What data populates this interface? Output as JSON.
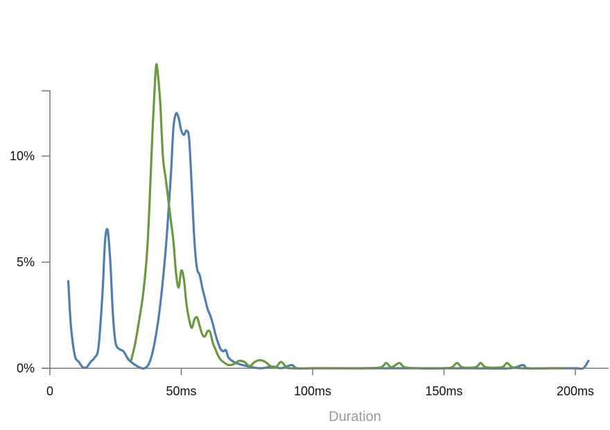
{
  "chart_data": {
    "type": "line",
    "title": "",
    "xlabel": "Duration",
    "ylabel": "",
    "xlim": [
      0,
      205
    ],
    "ylim": [
      0,
      13
    ],
    "x_ticks": [
      {
        "value": 0,
        "label": "0"
      },
      {
        "value": 50,
        "label": "50ms"
      },
      {
        "value": 100,
        "label": "100ms"
      },
      {
        "value": 150,
        "label": "150ms"
      },
      {
        "value": 200,
        "label": "200ms"
      }
    ],
    "y_ticks": [
      {
        "value": 0,
        "label": "0%"
      },
      {
        "value": 5,
        "label": "5%"
      },
      {
        "value": 10,
        "label": "10%"
      }
    ],
    "grid": false,
    "legend": "none",
    "series": [
      {
        "color": "#4f7db5",
        "points": [
          [
            7,
            4.1
          ],
          [
            8,
            2.0
          ],
          [
            9.5,
            0.6
          ],
          [
            11,
            0.3
          ],
          [
            12.5,
            0.05
          ],
          [
            14,
            0.05
          ],
          [
            15.5,
            0.3
          ],
          [
            17,
            0.5
          ],
          [
            18.5,
            1.0
          ],
          [
            20,
            3.5
          ],
          [
            21,
            6.0
          ],
          [
            22,
            6.5
          ],
          [
            23,
            5.0
          ],
          [
            24,
            2.5
          ],
          [
            25,
            1.2
          ],
          [
            26.5,
            0.9
          ],
          [
            28,
            0.8
          ],
          [
            30,
            0.4
          ],
          [
            32,
            0.2
          ],
          [
            34,
            0.05
          ],
          [
            36,
            0.0
          ],
          [
            38,
            0.3
          ],
          [
            40,
            1.3
          ],
          [
            42,
            3.0
          ],
          [
            44,
            5.5
          ],
          [
            46,
            9.0
          ],
          [
            47,
            11.3
          ],
          [
            48,
            12.0
          ],
          [
            49,
            11.8
          ],
          [
            50,
            11.2
          ],
          [
            51,
            11.0
          ],
          [
            52,
            11.2
          ],
          [
            53,
            10.8
          ],
          [
            54,
            8.5
          ],
          [
            55,
            6.0
          ],
          [
            56,
            4.7
          ],
          [
            57,
            4.4
          ],
          [
            58,
            3.8
          ],
          [
            59,
            3.3
          ],
          [
            60,
            2.8
          ],
          [
            61,
            2.5
          ],
          [
            62,
            2.1
          ],
          [
            63,
            1.6
          ],
          [
            64,
            1.2
          ],
          [
            65,
            0.9
          ],
          [
            66,
            0.8
          ],
          [
            67,
            0.85
          ],
          [
            68,
            0.5
          ],
          [
            70,
            0.3
          ],
          [
            72,
            0.2
          ],
          [
            75,
            0.1
          ],
          [
            80,
            0.0
          ],
          [
            85,
            0.08
          ],
          [
            88,
            0.0
          ],
          [
            92,
            0.15
          ],
          [
            94,
            0.0
          ],
          [
            100,
            0.0
          ],
          [
            120,
            0.0
          ],
          [
            140,
            0.0
          ],
          [
            160,
            0.0
          ],
          [
            175,
            0.0
          ],
          [
            180,
            0.15
          ],
          [
            182,
            0.0
          ],
          [
            190,
            0.0
          ],
          [
            200,
            0.0
          ],
          [
            203,
            0.0
          ],
          [
            205,
            0.35
          ]
        ]
      },
      {
        "color": "#6a9a3e",
        "points": [
          [
            31,
            0.4
          ],
          [
            32.5,
            1.2
          ],
          [
            34,
            2.3
          ],
          [
            35.5,
            3.5
          ],
          [
            37,
            5.5
          ],
          [
            38,
            8.0
          ],
          [
            39,
            11.0
          ],
          [
            40,
            13.5
          ],
          [
            40.5,
            14.3
          ],
          [
            41,
            14.0
          ],
          [
            42,
            12.5
          ],
          [
            43,
            10.0
          ],
          [
            44,
            9.0
          ],
          [
            45,
            8.0
          ],
          [
            46,
            7.0
          ],
          [
            47,
            6.0
          ],
          [
            48,
            4.5
          ],
          [
            49,
            3.8
          ],
          [
            50,
            4.6
          ],
          [
            51,
            4.2
          ],
          [
            52,
            3.0
          ],
          [
            53,
            2.3
          ],
          [
            54,
            1.9
          ],
          [
            55,
            2.3
          ],
          [
            56,
            2.4
          ],
          [
            57,
            2.0
          ],
          [
            58,
            1.6
          ],
          [
            59,
            1.5
          ],
          [
            60,
            1.75
          ],
          [
            61,
            1.7
          ],
          [
            62,
            1.2
          ],
          [
            63,
            0.9
          ],
          [
            64,
            0.6
          ],
          [
            65,
            0.4
          ],
          [
            66,
            0.3
          ],
          [
            68,
            0.15
          ],
          [
            70,
            0.2
          ],
          [
            72,
            0.35
          ],
          [
            74,
            0.3
          ],
          [
            76,
            0.1
          ],
          [
            78,
            0.3
          ],
          [
            80,
            0.38
          ],
          [
            82,
            0.3
          ],
          [
            84,
            0.1
          ],
          [
            86,
            0.05
          ],
          [
            88,
            0.3
          ],
          [
            90,
            0.05
          ],
          [
            92,
            0.0
          ],
          [
            100,
            0.0
          ],
          [
            110,
            0.0
          ],
          [
            120,
            0.0
          ],
          [
            126,
            0.05
          ],
          [
            128,
            0.25
          ],
          [
            130,
            0.05
          ],
          [
            133,
            0.25
          ],
          [
            135,
            0.05
          ],
          [
            140,
            0.0
          ],
          [
            150,
            0.0
          ],
          [
            153,
            0.05
          ],
          [
            155,
            0.25
          ],
          [
            157,
            0.05
          ],
          [
            162,
            0.05
          ],
          [
            164,
            0.25
          ],
          [
            166,
            0.05
          ],
          [
            172,
            0.05
          ],
          [
            174,
            0.25
          ],
          [
            176,
            0.05
          ],
          [
            180,
            0.0
          ],
          [
            190,
            0.0
          ],
          [
            195,
            0.0
          ]
        ]
      }
    ]
  }
}
